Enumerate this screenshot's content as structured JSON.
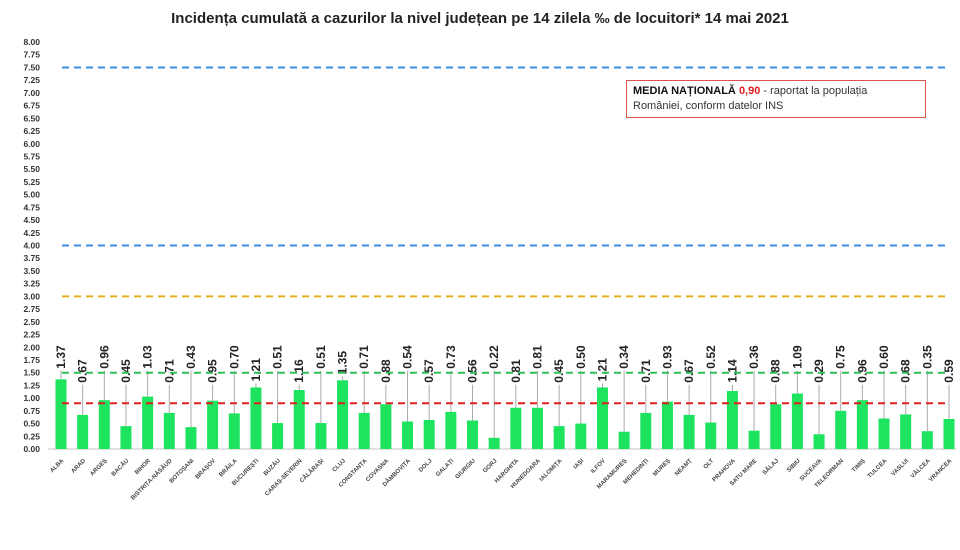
{
  "chart_data": {
    "type": "bar",
    "title": "Incidența cumulată a cazurilor la nivel județean pe 14 zilela ‰ de locuitori*  14 mai 2021",
    "categories": [
      "ALBA",
      "ARAD",
      "ARGEȘ",
      "BACĂU",
      "BIHOR",
      "BISTRIȚA-NĂSĂUD",
      "BOTOȘANI",
      "BRAȘOV",
      "BRĂILA",
      "BUCUREȘTI",
      "BUZĂU",
      "CARAȘ-SEVERIN",
      "CĂLĂRAȘI",
      "CLUJ",
      "CONSTANȚA",
      "COVASNA",
      "DÂMBOVIȚA",
      "DOLJ",
      "GALAȚI",
      "GIURGIU",
      "GORJ",
      "HARGHITA",
      "HUNEDOARA",
      "IALOMIȚA",
      "IAȘI",
      "ILFOV",
      "MARAMUREȘ",
      "MEHEDINȚI",
      "MUREȘ",
      "NEAMȚ",
      "OLT",
      "PRAHOVA",
      "SATU MARE",
      "SĂLAJ",
      "SIBIU",
      "SUCEAVA",
      "TELEORMAN",
      "TIMIȘ",
      "TULCEA",
      "VASLUI",
      "VÂLCEA",
      "VRANCEA"
    ],
    "values": [
      1.37,
      0.67,
      0.96,
      0.45,
      1.03,
      0.71,
      0.43,
      0.95,
      0.7,
      1.21,
      0.51,
      1.16,
      0.51,
      1.35,
      0.71,
      0.88,
      0.54,
      0.57,
      0.73,
      0.56,
      0.22,
      0.81,
      0.81,
      0.45,
      0.5,
      1.21,
      0.34,
      0.71,
      0.93,
      0.67,
      0.52,
      1.14,
      0.36,
      0.88,
      1.09,
      0.29,
      0.75,
      0.96,
      0.6,
      0.68,
      0.35,
      0.59
    ],
    "ylim": [
      0,
      8
    ],
    "ytick_step": 0.25,
    "grid": false,
    "bar_color": "#1de35f",
    "reference_lines": [
      {
        "value": 7.5,
        "color": "#3a8fe0"
      },
      {
        "value": 4.0,
        "color": "#3a8fe0"
      },
      {
        "value": 3.0,
        "color": "#e8b020"
      },
      {
        "value": 1.5,
        "color": "#2fbf55"
      },
      {
        "value": 0.9,
        "color": "#e02020"
      }
    ]
  },
  "legend": {
    "label_bold": "MEDIA NAȚIONALĂ",
    "value": "0,90",
    "text": " - raportat la populația României, conform datelor INS"
  }
}
